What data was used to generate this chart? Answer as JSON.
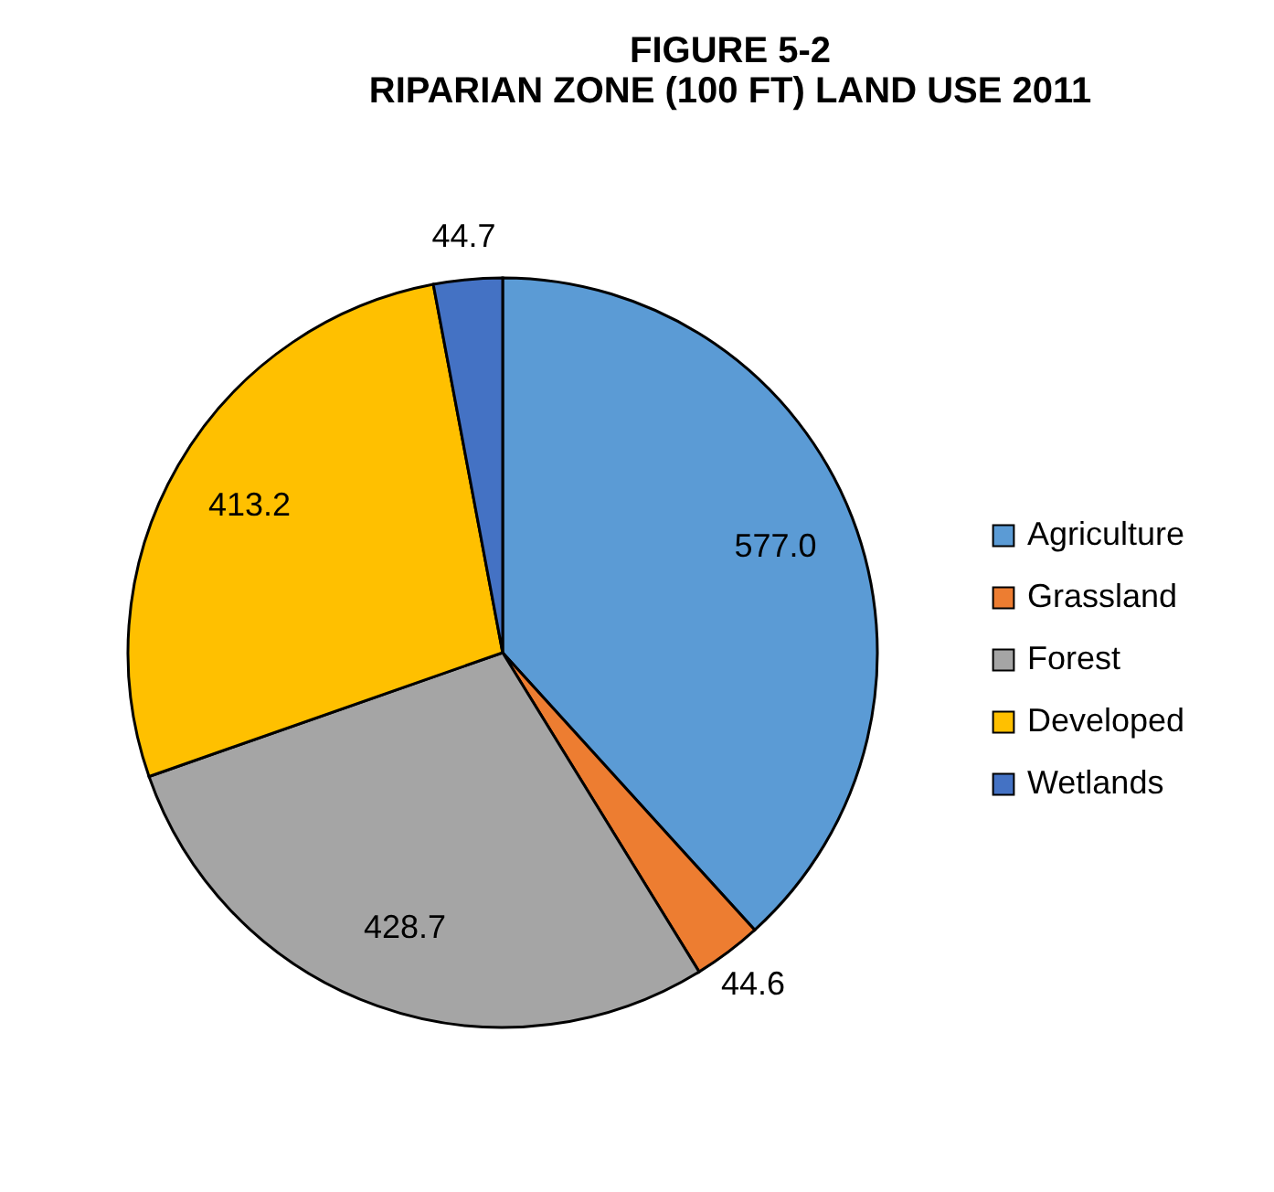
{
  "chart_data": {
    "type": "pie",
    "title": "FIGURE 5-2\nRIPARIAN ZONE (100 FT) LAND USE 2011",
    "categories": [
      "Agriculture",
      "Grassland",
      "Forest",
      "Developed",
      "Wetlands"
    ],
    "values": [
      577.0,
      44.6,
      428.7,
      413.2,
      44.7
    ],
    "value_labels": [
      "577.0",
      "44.6",
      "428.7",
      "413.2",
      "44.7"
    ],
    "colors": [
      "#5b9bd5",
      "#ed7d31",
      "#a5a5a5",
      "#ffc000",
      "#4472c4"
    ],
    "legend": "right"
  }
}
